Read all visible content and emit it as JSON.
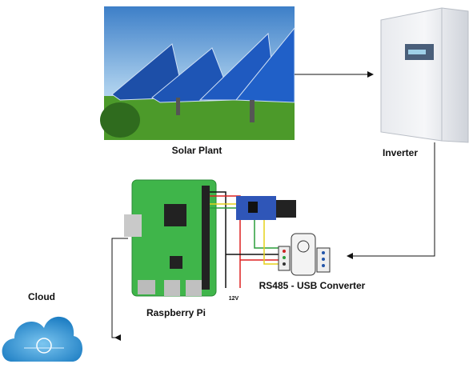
{
  "nodes": [
    {
      "label": "Solar Plant"
    },
    {
      "label": "Inverter"
    },
    {
      "label": "Raspberry Pi"
    },
    {
      "label": "RS485 - USB Converter"
    },
    {
      "label": "Cloud"
    }
  ],
  "wire_labels": [
    "12V"
  ]
}
